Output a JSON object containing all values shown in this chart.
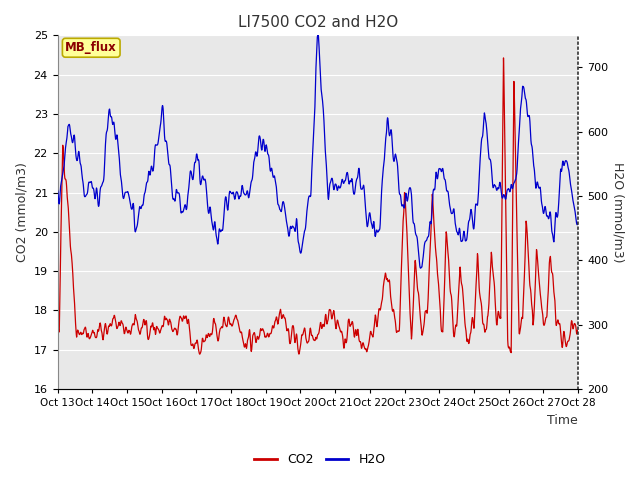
{
  "title": "LI7500 CO2 and H2O",
  "xlabel": "Time",
  "ylabel_left": "CO2 (mmol/m3)",
  "ylabel_right": "H2O (mmol/m3)",
  "co2_ylim": [
    16.0,
    25.0
  ],
  "h2o_ylim": [
    200,
    750
  ],
  "co2_color": "#cc0000",
  "h2o_color": "#0000cc",
  "legend_label_co2": "CO2",
  "legend_label_h2o": "H2O",
  "annotation_text": "MB_flux",
  "annotation_bg": "#ffff99",
  "annotation_border": "#bbaa00",
  "bg_color": "#ffffff",
  "plot_bg_color": "#e8e8e8",
  "grid_color": "#ffffff",
  "x_tick_labels": [
    "Oct 13",
    "Oct 14",
    "Oct 15",
    "Oct 16",
    "Oct 17",
    "Oct 18",
    "Oct 19",
    "Oct 20",
    "Oct 21",
    "Oct 22",
    "Oct 23",
    "Oct 24",
    "Oct 25",
    "Oct 26",
    "Oct 27",
    "Oct 28"
  ],
  "n_points": 1500,
  "title_fontsize": 11,
  "label_fontsize": 9,
  "tick_fontsize": 8,
  "legend_fontsize": 9,
  "linewidth": 0.9
}
